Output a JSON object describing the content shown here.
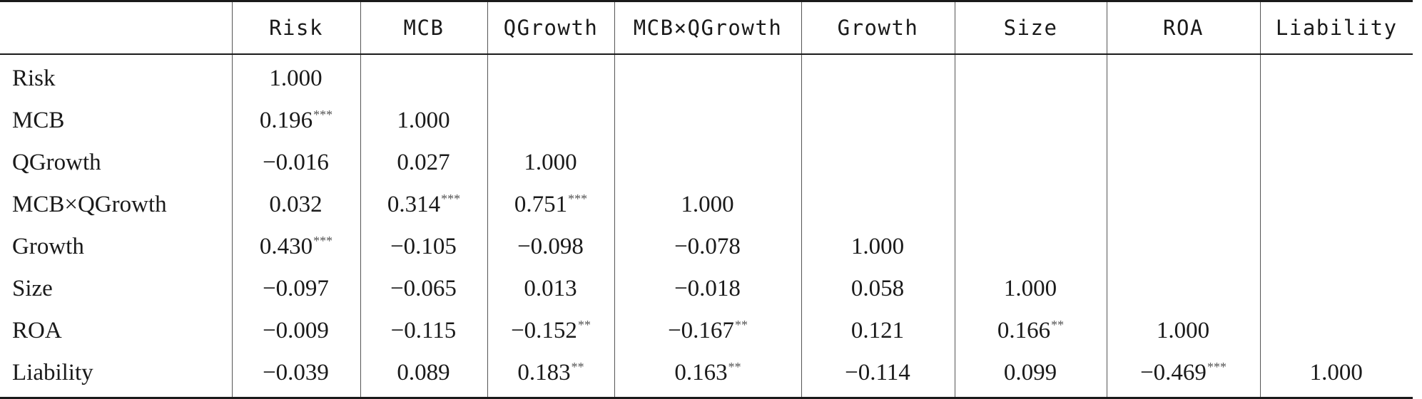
{
  "table": {
    "headers": [
      "",
      "Risk",
      "MCB",
      "QGrowth",
      "MCB×QGrowth",
      "Growth",
      "Size",
      "ROA",
      "Liability"
    ],
    "rows": [
      {
        "label": "Risk",
        "cells": [
          {
            "value": "1.000",
            "stars": ""
          },
          {
            "value": "",
            "stars": ""
          },
          {
            "value": "",
            "stars": ""
          },
          {
            "value": "",
            "stars": ""
          },
          {
            "value": "",
            "stars": ""
          },
          {
            "value": "",
            "stars": ""
          },
          {
            "value": "",
            "stars": ""
          },
          {
            "value": "",
            "stars": ""
          }
        ]
      },
      {
        "label": "MCB",
        "cells": [
          {
            "value": "0.196",
            "stars": "***"
          },
          {
            "value": "1.000",
            "stars": ""
          },
          {
            "value": "",
            "stars": ""
          },
          {
            "value": "",
            "stars": ""
          },
          {
            "value": "",
            "stars": ""
          },
          {
            "value": "",
            "stars": ""
          },
          {
            "value": "",
            "stars": ""
          },
          {
            "value": "",
            "stars": ""
          }
        ]
      },
      {
        "label": "QGrowth",
        "cells": [
          {
            "value": "−0.016",
            "stars": ""
          },
          {
            "value": "0.027",
            "stars": ""
          },
          {
            "value": "1.000",
            "stars": ""
          },
          {
            "value": "",
            "stars": ""
          },
          {
            "value": "",
            "stars": ""
          },
          {
            "value": "",
            "stars": ""
          },
          {
            "value": "",
            "stars": ""
          },
          {
            "value": "",
            "stars": ""
          }
        ]
      },
      {
        "label": "MCB×QGrowth",
        "cells": [
          {
            "value": "0.032",
            "stars": ""
          },
          {
            "value": "0.314",
            "stars": "***"
          },
          {
            "value": "0.751",
            "stars": "***"
          },
          {
            "value": "1.000",
            "stars": ""
          },
          {
            "value": "",
            "stars": ""
          },
          {
            "value": "",
            "stars": ""
          },
          {
            "value": "",
            "stars": ""
          },
          {
            "value": "",
            "stars": ""
          }
        ]
      },
      {
        "label": "Growth",
        "cells": [
          {
            "value": "0.430",
            "stars": "***"
          },
          {
            "value": "−0.105",
            "stars": ""
          },
          {
            "value": "−0.098",
            "stars": ""
          },
          {
            "value": "−0.078",
            "stars": ""
          },
          {
            "value": "1.000",
            "stars": ""
          },
          {
            "value": "",
            "stars": ""
          },
          {
            "value": "",
            "stars": ""
          },
          {
            "value": "",
            "stars": ""
          }
        ]
      },
      {
        "label": "Size",
        "cells": [
          {
            "value": "−0.097",
            "stars": ""
          },
          {
            "value": "−0.065",
            "stars": ""
          },
          {
            "value": "0.013",
            "stars": ""
          },
          {
            "value": "−0.018",
            "stars": ""
          },
          {
            "value": "0.058",
            "stars": ""
          },
          {
            "value": "1.000",
            "stars": ""
          },
          {
            "value": "",
            "stars": ""
          },
          {
            "value": "",
            "stars": ""
          }
        ]
      },
      {
        "label": "ROA",
        "cells": [
          {
            "value": "−0.009",
            "stars": ""
          },
          {
            "value": "−0.115",
            "stars": ""
          },
          {
            "value": "−0.152",
            "stars": "**"
          },
          {
            "value": "−0.167",
            "stars": "**"
          },
          {
            "value": "0.121",
            "stars": ""
          },
          {
            "value": "0.166",
            "stars": "**"
          },
          {
            "value": "1.000",
            "stars": ""
          },
          {
            "value": "",
            "stars": ""
          }
        ]
      },
      {
        "label": "Liability",
        "cells": [
          {
            "value": "−0.039",
            "stars": ""
          },
          {
            "value": "0.089",
            "stars": ""
          },
          {
            "value": "0.183",
            "stars": "**"
          },
          {
            "value": "0.163",
            "stars": "**"
          },
          {
            "value": "−0.114",
            "stars": ""
          },
          {
            "value": "0.099",
            "stars": ""
          },
          {
            "value": "−0.469",
            "stars": "***"
          },
          {
            "value": "1.000",
            "stars": ""
          }
        ]
      }
    ]
  }
}
